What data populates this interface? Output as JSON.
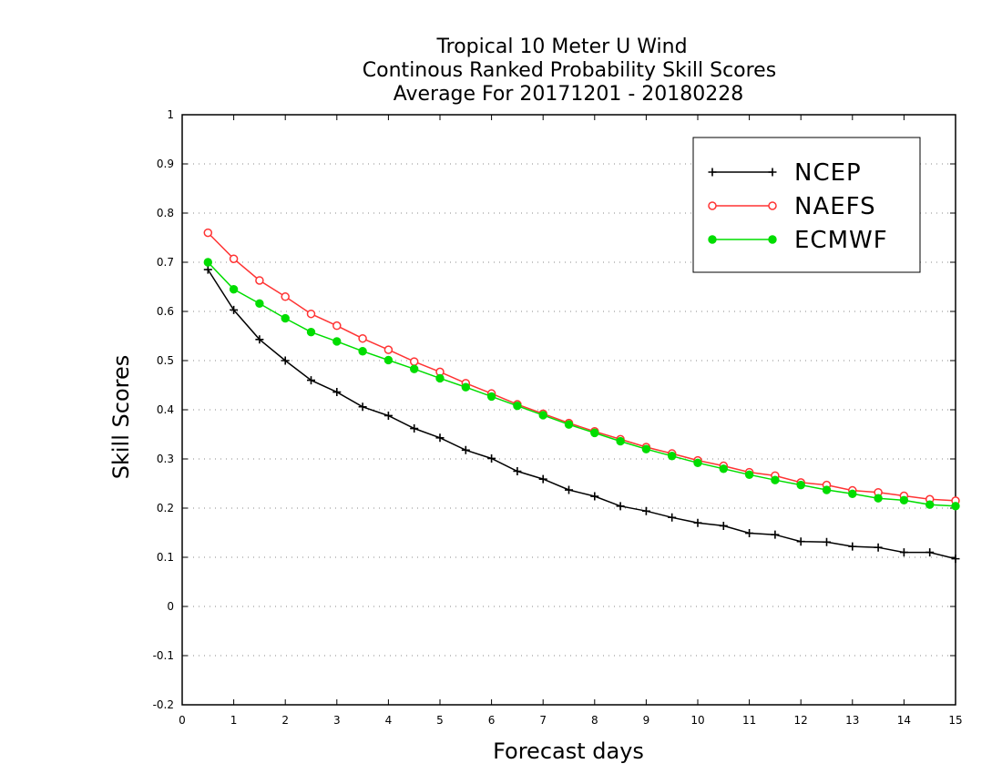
{
  "chart_data": {
    "type": "line",
    "title": [
      "Tropical 10 Meter U Wind",
      "Continous Ranked Probability Skill Scores",
      "Average For 20171201 - 20180228"
    ],
    "xlabel": "Forecast days",
    "ylabel": "Skill Scores",
    "xlim": [
      0,
      15
    ],
    "ylim": [
      -0.2,
      1
    ],
    "xticks": [
      0,
      1,
      2,
      3,
      4,
      5,
      6,
      7,
      8,
      9,
      10,
      11,
      12,
      13,
      14,
      15
    ],
    "xtick_labels": [
      "0",
      "1",
      "2",
      "3",
      "4",
      "5",
      "6",
      "7",
      "8",
      "9",
      "10",
      "11",
      "12",
      "13",
      "14",
      "15"
    ],
    "yticks": [
      -0.2,
      -0.1,
      0,
      0.1,
      0.2,
      0.3,
      0.4,
      0.5,
      0.6,
      0.7,
      0.8,
      0.9,
      1
    ],
    "ytick_labels": [
      "-0.2",
      "-0.1",
      "0",
      "0.1",
      "0.2",
      "0.3",
      "0.4",
      "0.5",
      "0.6",
      "0.7",
      "0.8",
      "0.9",
      "1"
    ],
    "grid": "horizontal dotted",
    "legend_position": "top-right",
    "x": [
      0.5,
      1,
      1.5,
      2,
      2.5,
      3,
      3.5,
      4,
      4.5,
      5,
      5.5,
      6,
      6.5,
      7,
      7.5,
      8,
      8.5,
      9,
      9.5,
      10,
      10.5,
      11,
      11.5,
      12,
      12.5,
      13,
      13.5,
      14,
      14.5,
      15
    ],
    "series": [
      {
        "name": "NCEP",
        "color": "#000000",
        "marker": "plus",
        "values": [
          0.685,
          0.603,
          0.543,
          0.5,
          0.46,
          0.436,
          0.406,
          0.388,
          0.362,
          0.343,
          0.318,
          0.301,
          0.275,
          0.259,
          0.237,
          0.224,
          0.204,
          0.194,
          0.181,
          0.17,
          0.164,
          0.149,
          0.146,
          0.132,
          0.131,
          0.122,
          0.12,
          0.11,
          0.11,
          0.097
        ]
      },
      {
        "name": "NAEFS",
        "color": "#ff3333",
        "marker": "open-circle",
        "values": [
          0.76,
          0.707,
          0.663,
          0.63,
          0.595,
          0.571,
          0.545,
          0.522,
          0.498,
          0.477,
          0.454,
          0.433,
          0.411,
          0.392,
          0.373,
          0.356,
          0.34,
          0.324,
          0.311,
          0.297,
          0.286,
          0.273,
          0.266,
          0.252,
          0.247,
          0.236,
          0.232,
          0.225,
          0.218,
          0.215
        ]
      },
      {
        "name": "ECMWF",
        "color": "#00dd00",
        "marker": "filled-circle",
        "values": [
          0.7,
          0.645,
          0.616,
          0.586,
          0.558,
          0.539,
          0.519,
          0.501,
          0.483,
          0.464,
          0.446,
          0.427,
          0.408,
          0.389,
          0.37,
          0.353,
          0.336,
          0.32,
          0.306,
          0.292,
          0.28,
          0.268,
          0.257,
          0.247,
          0.237,
          0.229,
          0.22,
          0.216,
          0.207,
          0.204
        ]
      }
    ]
  }
}
